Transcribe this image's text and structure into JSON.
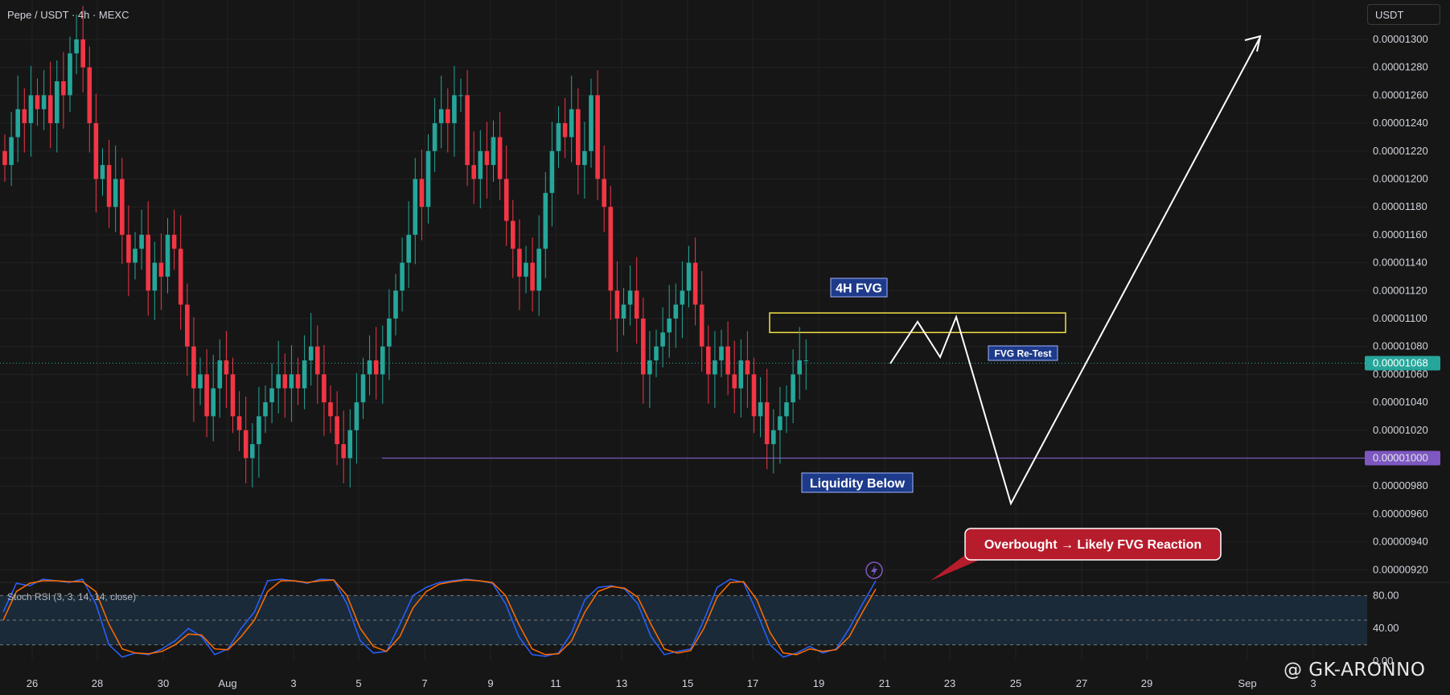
{
  "header": {
    "title": "Pepe / USDT · 4h · MEXC",
    "currency": "USDT"
  },
  "watermark": "@ GK-ARONNO",
  "annotations": {
    "fvg_label": "4H FVG",
    "fvg_retest": "FVG Re-Test",
    "liquidity": "Liquidity Below",
    "callout": "Overbought → Likely FVG Reaction"
  },
  "indicator": {
    "label": "Stoch RSI (3, 3, 14, 14, close)",
    "ticks": [
      "80.00",
      "40.00",
      "0.00"
    ]
  },
  "colors": {
    "up": "#26a69a",
    "down": "#f23645",
    "fvg_box": "#f2e244",
    "liquidity_line": "#7e57c2",
    "price_badge": "#26a69a",
    "label_bg": "#1e3a8a",
    "callout_bg": "#b71c2c",
    "stoch_k": "#2962ff",
    "stoch_d": "#ff6d00"
  },
  "chart_data": {
    "type": "candlestick",
    "y_ticks": [
      "0.00001300",
      "0.00001280",
      "0.00001260",
      "0.00001240",
      "0.00001220",
      "0.00001200",
      "0.00001180",
      "0.00001160",
      "0.00001140",
      "0.00001120",
      "0.00001100",
      "0.00001080",
      "0.00001060",
      "0.00001040",
      "0.00001020",
      "0.00001000",
      "0.00000980",
      "0.00000960",
      "0.00000940",
      "0.00000920"
    ],
    "ylim": [
      9.12e-06,
      1.312e-05
    ],
    "x_ticks": [
      "26",
      "28",
      "30",
      "Aug",
      "3",
      "5",
      "7",
      "9",
      "11",
      "13",
      "15",
      "17",
      "19",
      "21",
      "23",
      "25",
      "27",
      "29",
      "Sep",
      "3"
    ],
    "current_price": "0.00001068",
    "liquidity_level": "0.00001000",
    "fvg_range": [
      1.09e-05,
      1.104e-05
    ],
    "candles_close": [
      1.21e-05,
      1.23e-05,
      1.25e-05,
      1.24e-05,
      1.26e-05,
      1.25e-05,
      1.26e-05,
      1.24e-05,
      1.27e-05,
      1.26e-05,
      1.29e-05,
      1.3e-05,
      1.28e-05,
      1.24e-05,
      1.2e-05,
      1.21e-05,
      1.18e-05,
      1.2e-05,
      1.16e-05,
      1.14e-05,
      1.15e-05,
      1.16e-05,
      1.12e-05,
      1.14e-05,
      1.13e-05,
      1.16e-05,
      1.15e-05,
      1.11e-05,
      1.08e-05,
      1.05e-05,
      1.06e-05,
      1.03e-05,
      1.05e-05,
      1.07e-05,
      1.06e-05,
      1.03e-05,
      1.02e-05,
      1e-05,
      1.01e-05,
      1.03e-05,
      1.04e-05,
      1.05e-05,
      1.06e-05,
      1.05e-05,
      1.06e-05,
      1.05e-05,
      1.07e-05,
      1.08e-05,
      1.06e-05,
      1.04e-05,
      1.03e-05,
      1.01e-05,
      1e-05,
      1.02e-05,
      1.04e-05,
      1.06e-05,
      1.07e-05,
      1.06e-05,
      1.08e-05,
      1.1e-05,
      1.12e-05,
      1.14e-05,
      1.16e-05,
      1.2e-05,
      1.18e-05,
      1.22e-05,
      1.24e-05,
      1.25e-05,
      1.24e-05,
      1.26e-05,
      1.26e-05,
      1.21e-05,
      1.2e-05,
      1.22e-05,
      1.21e-05,
      1.23e-05,
      1.2e-05,
      1.17e-05,
      1.15e-05,
      1.13e-05,
      1.14e-05,
      1.12e-05,
      1.15e-05,
      1.19e-05,
      1.22e-05,
      1.24e-05,
      1.23e-05,
      1.25e-05,
      1.21e-05,
      1.22e-05,
      1.26e-05,
      1.2e-05,
      1.18e-05,
      1.12e-05,
      1.1e-05,
      1.11e-05,
      1.12e-05,
      1.1e-05,
      1.06e-05,
      1.07e-05,
      1.08e-05,
      1.09e-05,
      1.1e-05,
      1.11e-05,
      1.12e-05,
      1.14e-05,
      1.11e-05,
      1.08e-05,
      1.06e-05,
      1.07e-05,
      1.08e-05,
      1.06e-05,
      1.05e-05,
      1.07e-05,
      1.06e-05,
      1.03e-05,
      1.04e-05,
      1.01e-05,
      1.02e-05,
      1.03e-05,
      1.04e-05,
      1.06e-05,
      1.07e-05,
      1.07e-05
    ],
    "stoch_k": [
      60,
      95,
      92,
      100,
      98,
      96,
      100,
      70,
      20,
      5,
      10,
      8,
      15,
      25,
      40,
      30,
      8,
      15,
      40,
      60,
      98,
      100,
      98,
      95,
      100,
      99,
      70,
      25,
      10,
      12,
      45,
      80,
      90,
      96,
      98,
      100,
      98,
      95,
      70,
      30,
      8,
      6,
      10,
      35,
      75,
      90,
      92,
      88,
      70,
      30,
      8,
      12,
      15,
      50,
      90,
      100,
      96,
      60,
      20,
      5,
      10,
      18,
      10,
      15,
      40,
      70,
      98
    ],
    "stoch_d": [
      50,
      85,
      95,
      98,
      98,
      97,
      97,
      85,
      45,
      15,
      10,
      9,
      12,
      20,
      33,
      32,
      15,
      14,
      30,
      50,
      85,
      98,
      98,
      96,
      98,
      99,
      80,
      40,
      18,
      12,
      30,
      65,
      85,
      94,
      97,
      99,
      98,
      96,
      80,
      45,
      15,
      8,
      9,
      25,
      60,
      85,
      91,
      89,
      78,
      45,
      15,
      10,
      13,
      40,
      78,
      96,
      97,
      75,
      35,
      10,
      8,
      15,
      12,
      14,
      30,
      60,
      88
    ]
  }
}
